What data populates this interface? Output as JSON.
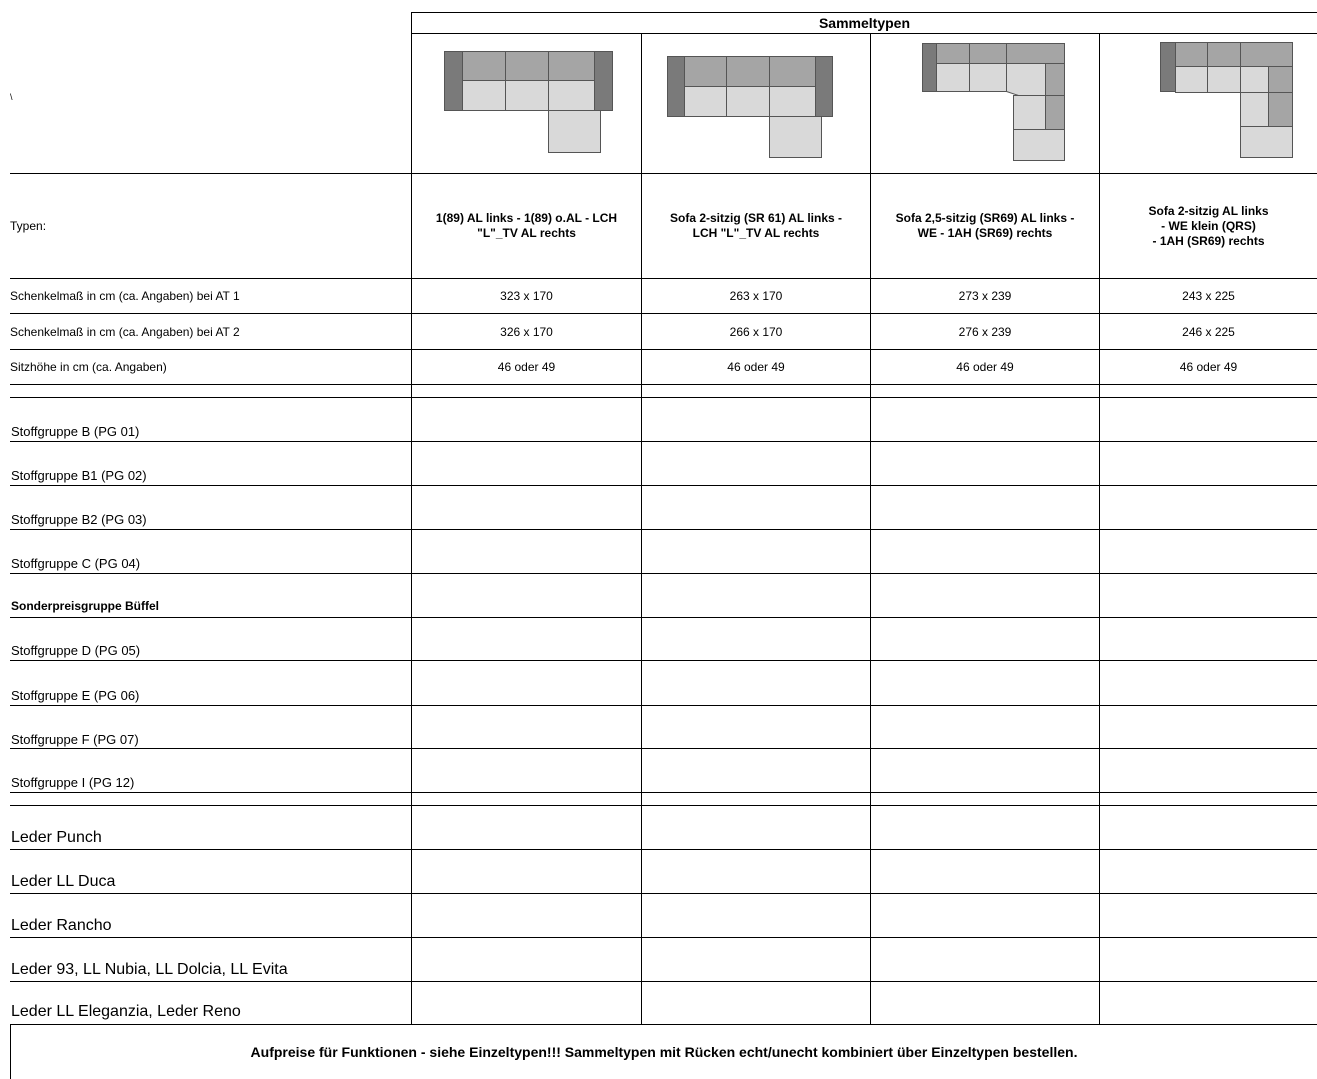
{
  "header": {
    "title": "Sammeltypen"
  },
  "corner_mark": "\\",
  "row_labels": {
    "types": "Typen:",
    "at1": "Schenkelmaß in cm (ca. Angaben) bei AT 1",
    "at2": "Schenkelmaß in cm (ca. Angaben) bei AT 2",
    "seat": "Sitzhöhe in cm (ca. Angaben)"
  },
  "columns": [
    {
      "type": "1(89) AL links - 1(89) o.AL - LCH\n\"L\"_TV AL rechts",
      "at1": "323 x 170",
      "at2": "326 x 170",
      "seat": "46  oder 49",
      "image": "sofa-diagram-L-chaise"
    },
    {
      "type": "Sofa 2-sitzig (SR 61) AL links -\nLCH \"L\"_TV AL rechts",
      "at1": "263 x 170",
      "at2": "266 x 170",
      "seat": "46  oder 49",
      "image": "sofa-diagram-L-chaise-2"
    },
    {
      "type": "Sofa 2,5-sitzig (SR69) AL links -\nWE - 1AH (SR69) rechts",
      "at1": "273 x 239",
      "at2": "276 x 239",
      "seat": "46  oder 49",
      "image": "sofa-diagram-corner"
    },
    {
      "type": "Sofa 2-sitzig AL links\n- WE klein (QRS)\n- 1AH (SR69) rechts",
      "at1": "243 x 225",
      "at2": "246 x 225",
      "seat": "46  oder 49",
      "image": "sofa-diagram-corner-small"
    }
  ],
  "fabric_groups": [
    {
      "label": "Stoffgruppe B  (PG 01)",
      "bold": false
    },
    {
      "label": "Stoffgruppe B1 (PG 02)",
      "bold": false
    },
    {
      "label": "Stoffgruppe B2 (PG 03)",
      "bold": false
    },
    {
      "label": "Stoffgruppe C  (PG 04)",
      "bold": false
    },
    {
      "label": "Sonderpreisgruppe Büffel",
      "bold": true
    },
    {
      "label": "Stoffgruppe D  (PG 05)",
      "bold": false
    },
    {
      "label": "Stoffgruppe E  (PG 06)",
      "bold": false
    },
    {
      "label": "Stoffgruppe F  (PG 07)",
      "bold": false
    },
    {
      "label": "Stoffgruppe I  (PG 12)",
      "bold": false
    }
  ],
  "leather_groups": [
    "Leder Punch",
    "Leder LL Duca",
    "Leder Rancho",
    "Leder 93, LL Nubia, LL Dolcia, LL Evita",
    "Leder LL Eleganzia, Leder Reno"
  ],
  "footer": "Aufpreise für Funktionen - siehe Einzeltypen!!! Sammeltypen mit Rücken echt/unecht kombiniert über Einzeltypen bestellen.",
  "colors": {
    "armrest": "#7a7a7a",
    "back": "#a5a5a5",
    "seat": "#d9d9d9",
    "outline": "#555555"
  }
}
